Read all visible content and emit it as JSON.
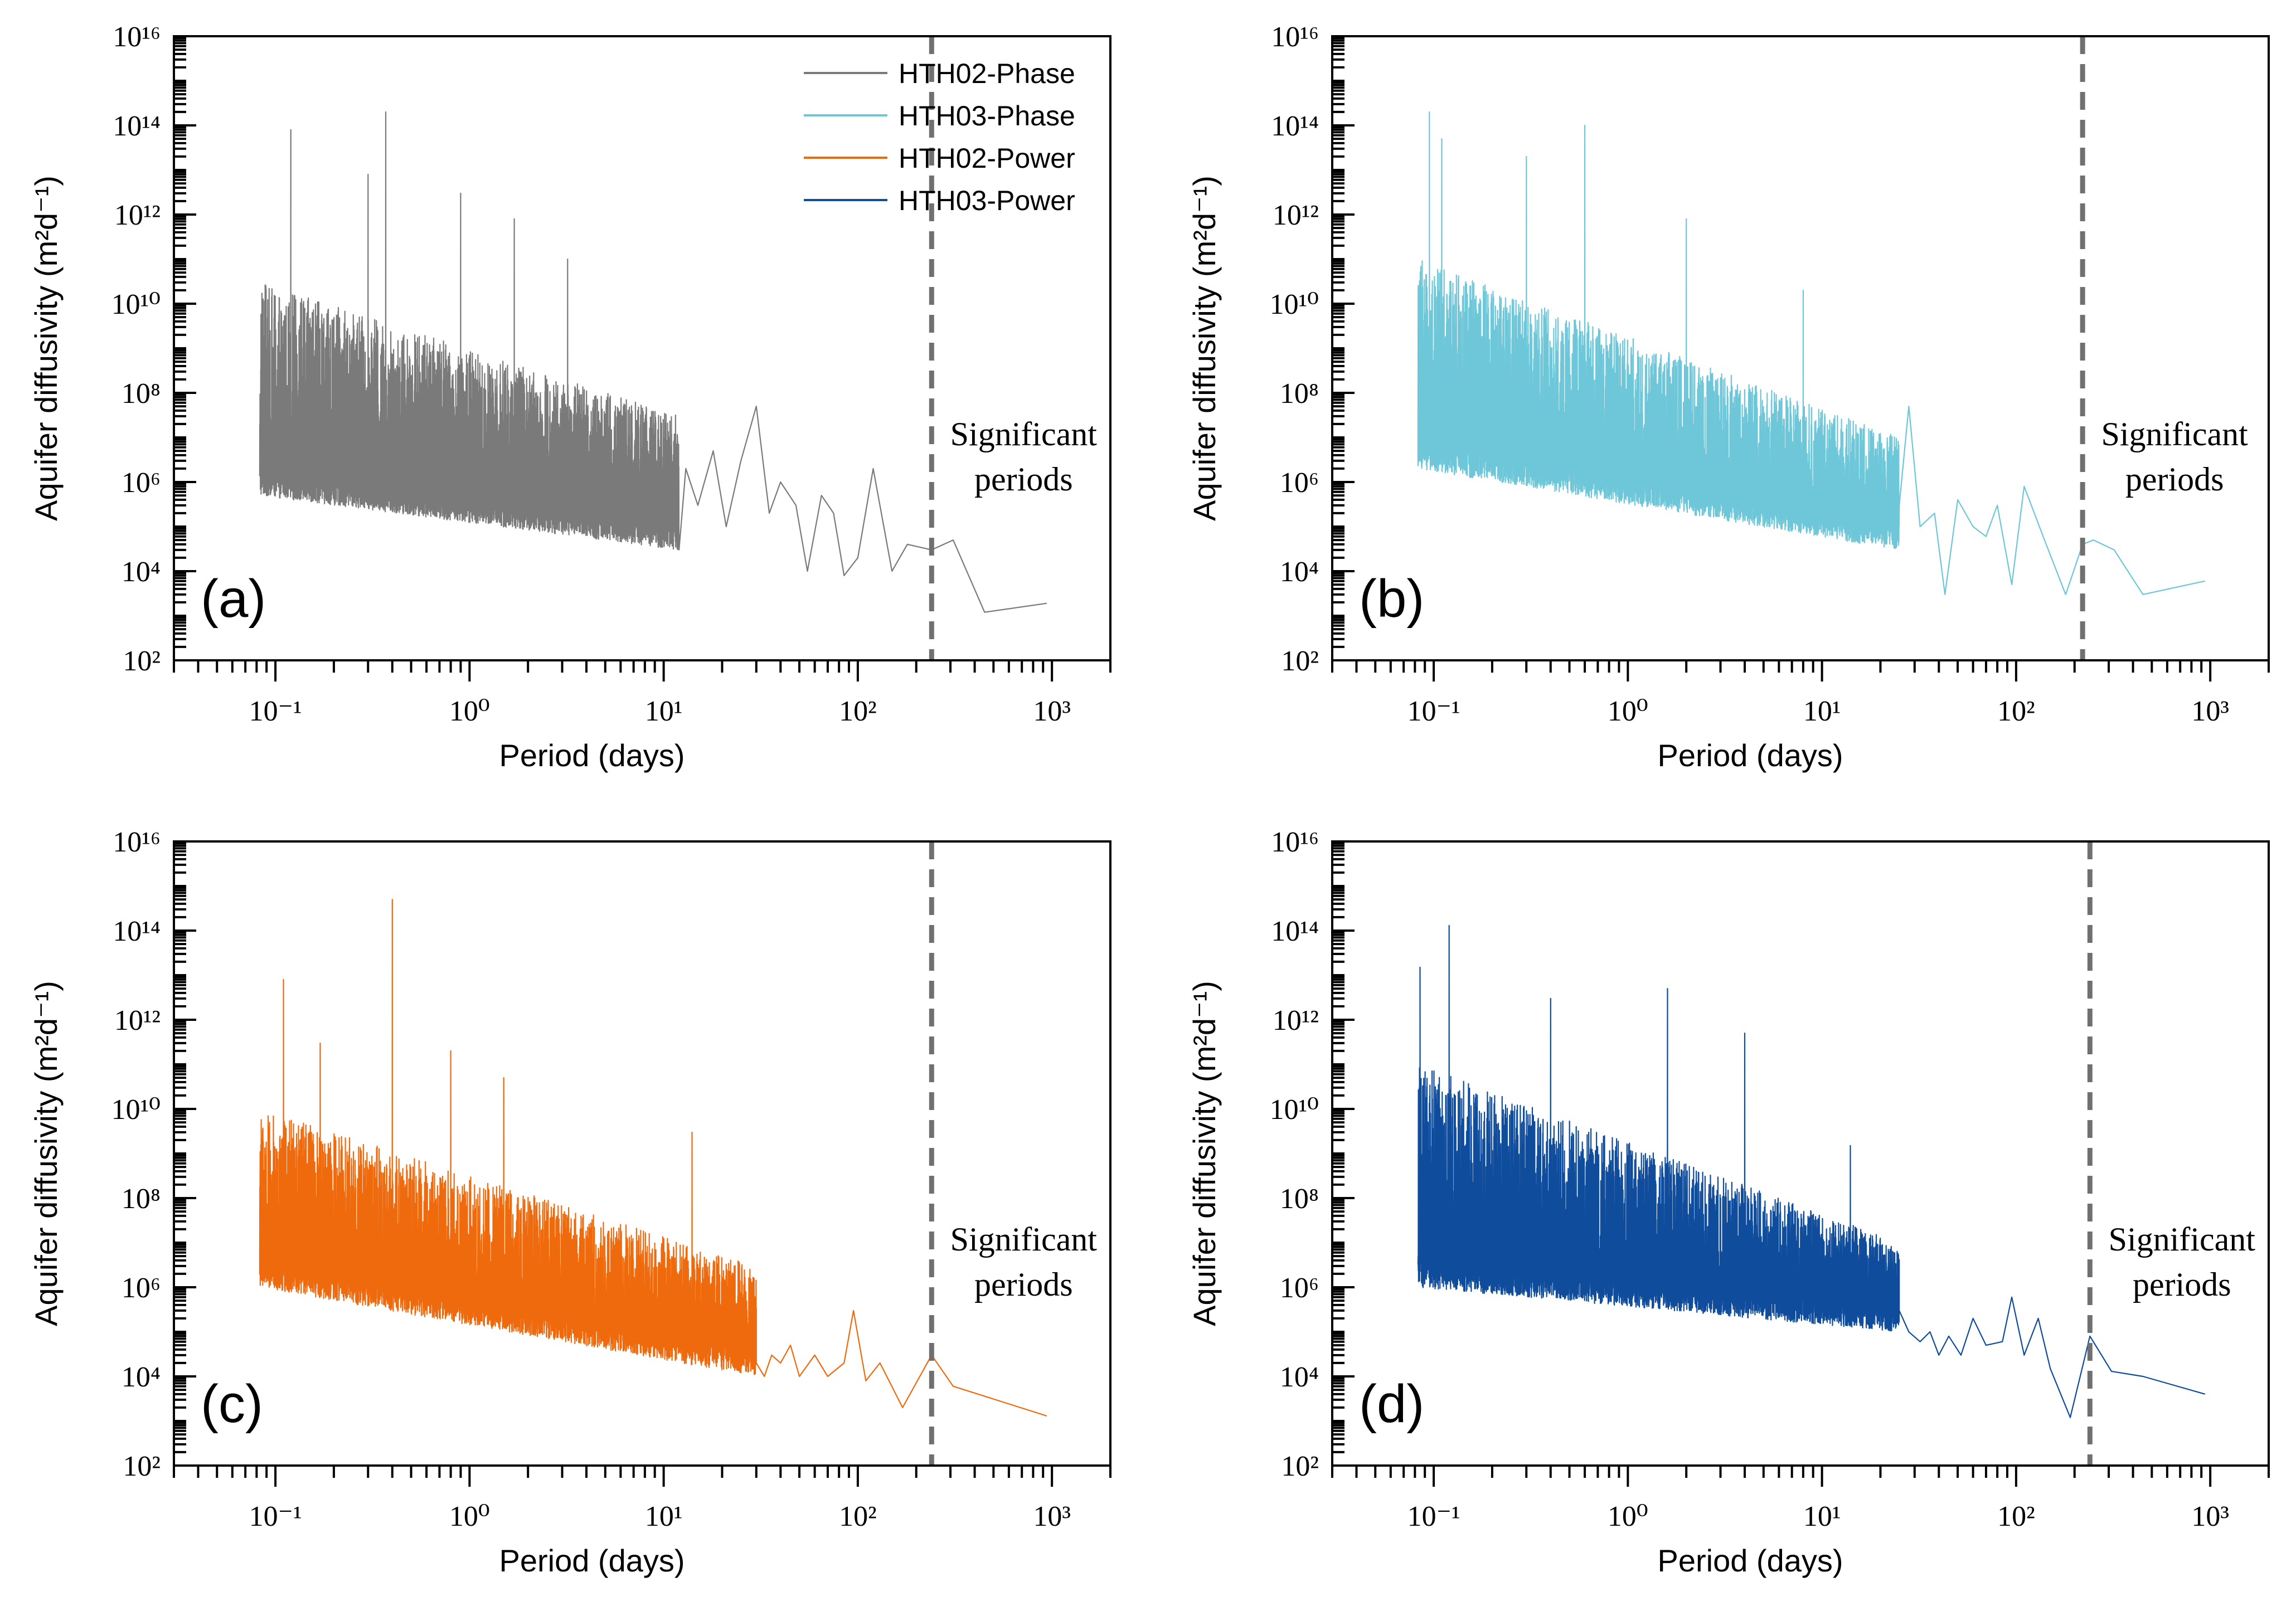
{
  "figure": {
    "panels": [
      {
        "label": "(a)",
        "color": "#7a7a7a",
        "series_name": "HTH02-Phase",
        "annotation_lines": [
          "Significant",
          "periods"
        ],
        "show_legend": true
      },
      {
        "label": "(b)",
        "color": "#6ec7d8",
        "series_name": "HTH03-Phase",
        "annotation_lines": [
          "Significant",
          "periods"
        ],
        "show_legend": false
      },
      {
        "label": "(c)",
        "color": "#ef6a0c",
        "series_name": "HTH02-Power",
        "annotation_lines": [
          "Significant",
          "periods"
        ],
        "show_legend": false
      },
      {
        "label": "(d)",
        "color": "#0f4c9c",
        "series_name": "HTH03-Power",
        "annotation_lines": [
          "Significant",
          "periods"
        ],
        "show_legend": false
      }
    ],
    "dashed_line_color": "#707070"
  },
  "chart_data": [
    {
      "type": "line",
      "title": "(a)",
      "xlabel": "Period (days)",
      "ylabel": "Aquifer diffusivity (m²d⁻¹)",
      "xscale": "log",
      "yscale": "log",
      "xlim": [
        0.03,
        2000
      ],
      "ylim": [
        100,
        1e+16
      ],
      "x_ticks": [
        "10⁻¹",
        "10⁰",
        "10¹",
        "10²",
        "10³"
      ],
      "y_ticks": [
        "10²",
        "10⁴",
        "10⁶",
        "10⁸",
        "10¹⁰",
        "10¹²",
        "10¹⁴",
        "10¹⁶"
      ],
      "legend": {
        "position": "top-right",
        "entries": [
          {
            "name": "HTH02-Phase",
            "color": "#7a7a7a"
          },
          {
            "name": "HTH03-Phase",
            "color": "#6ec7d8"
          },
          {
            "name": "HTH02-Power",
            "color": "#ef6a0c"
          },
          {
            "name": "HTH03-Power",
            "color": "#0f4c9c"
          }
        ]
      },
      "significant_period_day": 240,
      "annotation": "Significant periods",
      "series": [
        {
          "name": "HTH02-Phase",
          "color": "#7a7a7a",
          "envelope": {
            "x_start": 0.083,
            "x_end": 12,
            "floor_at_start": 500000.0,
            "floor_at_end": 30000.0,
            "peak_at_start": 30000000000.0,
            "peak_at_end": 30000000.0,
            "spikes": [
              [
                0.12,
                80000000000000.0
              ],
              [
                0.37,
                200000000000000.0
              ],
              [
                0.3,
                8000000000000.0
              ],
              [
                0.9,
                3000000000000.0
              ],
              [
                1.7,
                800000000000.0
              ],
              [
                3.2,
                100000000000.0
              ]
            ]
          },
          "tail": [
            [
              12,
              30000.0
            ],
            [
              13,
              2000000.0
            ],
            [
              15,
              300000.0
            ],
            [
              18,
              5000000.0
            ],
            [
              21,
              100000.0
            ],
            [
              25,
              3000000.0
            ],
            [
              30,
              50000000.0
            ],
            [
              35,
              200000.0
            ],
            [
              40,
              1000000.0
            ],
            [
              48,
              300000.0
            ],
            [
              55,
              10000.0
            ],
            [
              65,
              500000.0
            ],
            [
              75,
              200000.0
            ],
            [
              85,
              8000.0
            ],
            [
              100,
              20000.0
            ],
            [
              120,
              2000000.0
            ],
            [
              150,
              10000.0
            ],
            [
              180,
              40000.0
            ],
            [
              240,
              30000.0
            ],
            [
              310,
              50000.0
            ],
            [
              450,
              1200.0
            ],
            [
              940,
              1900.0
            ]
          ]
        }
      ]
    },
    {
      "type": "line",
      "title": "(b)",
      "xlabel": "Period (days)",
      "ylabel": "Aquifer diffusivity (m²d⁻¹)",
      "xscale": "log",
      "yscale": "log",
      "xlim": [
        0.03,
        2000
      ],
      "ylim": [
        100,
        1e+16
      ],
      "x_ticks": [
        "10⁻¹",
        "10⁰",
        "10¹",
        "10²",
        "10³"
      ],
      "y_ticks": [
        "10²",
        "10⁴",
        "10⁶",
        "10⁸",
        "10¹⁰",
        "10¹²",
        "10¹⁴",
        "10¹⁶"
      ],
      "significant_period_day": 220,
      "annotation": "Significant periods",
      "series": [
        {
          "name": "HTH03-Phase",
          "color": "#6ec7d8",
          "envelope": {
            "x_start": 0.083,
            "x_end": 25,
            "floor_at_start": 2000000.0,
            "floor_at_end": 30000.0,
            "peak_at_start": 100000000000.0,
            "peak_at_end": 10000000.0,
            "spikes": [
              [
                0.095,
                200000000000000.0
              ],
              [
                0.6,
                100000000000000.0
              ],
              [
                0.11,
                50000000000000.0
              ],
              [
                0.3,
                20000000000000.0
              ],
              [
                2,
                800000000000.0
              ],
              [
                8,
                20000000000.0
              ]
            ]
          },
          "tail": [
            [
              25,
              300000.0
            ],
            [
              28,
              50000000.0
            ],
            [
              32,
              100000.0
            ],
            [
              38,
              200000.0
            ],
            [
              43,
              3000.0
            ],
            [
              50,
              400000.0
            ],
            [
              60,
              100000.0
            ],
            [
              70,
              60000.0
            ],
            [
              80,
              300000.0
            ],
            [
              95,
              5000.0
            ],
            [
              110,
              800000.0
            ],
            [
              140,
              50000.0
            ],
            [
              180,
              3000.0
            ],
            [
              220,
              40000.0
            ],
            [
              250,
              50000.0
            ],
            [
              320,
              30000.0
            ],
            [
              450,
              3000.0
            ],
            [
              940,
              6000.0
            ]
          ]
        }
      ]
    },
    {
      "type": "line",
      "title": "(c)",
      "xlabel": "Period (days)",
      "ylabel": "Aquifer diffusivity (m²d⁻¹)",
      "xscale": "log",
      "yscale": "log",
      "xlim": [
        0.03,
        2000
      ],
      "ylim": [
        100,
        1e+16
      ],
      "x_ticks": [
        "10⁻¹",
        "10⁰",
        "10¹",
        "10²",
        "10³"
      ],
      "y_ticks": [
        "10²",
        "10⁴",
        "10⁶",
        "10⁸",
        "10¹⁰",
        "10¹²",
        "10¹⁴",
        "10¹⁶"
      ],
      "significant_period_day": 240,
      "annotation": "Significant periods",
      "series": [
        {
          "name": "HTH02-Power",
          "color": "#ef6a0c",
          "envelope": {
            "x_start": 0.083,
            "x_end": 30,
            "floor_at_start": 1000000.0,
            "floor_at_end": 10000.0,
            "peak_at_start": 10000000000.0,
            "peak_at_end": 3000000.0,
            "spikes": [
              [
                0.4,
                500000000000000.0
              ],
              [
                0.11,
                8000000000000.0
              ],
              [
                0.17,
                300000000000.0
              ],
              [
                0.8,
                200000000000.0
              ],
              [
                1.5,
                50000000000.0
              ],
              [
                14,
                3000000000.0
              ]
            ]
          },
          "tail": [
            [
              30,
              20000.0
            ],
            [
              33,
              10000.0
            ],
            [
              36,
              30000.0
            ],
            [
              40,
              20000.0
            ],
            [
              45,
              50000.0
            ],
            [
              50,
              10000.0
            ],
            [
              60,
              30000.0
            ],
            [
              70,
              10000.0
            ],
            [
              85,
              20000.0
            ],
            [
              95,
              300000.0
            ],
            [
              110,
              8000.0
            ],
            [
              130,
              20000.0
            ],
            [
              170,
              2000.0
            ],
            [
              240,
              30000.0
            ],
            [
              310,
              6000.0
            ],
            [
              940,
              1300.0
            ]
          ]
        }
      ]
    },
    {
      "type": "line",
      "title": "(d)",
      "xlabel": "Period (days)",
      "ylabel": "Aquifer diffusivity (m²d⁻¹)",
      "xscale": "log",
      "yscale": "log",
      "xlim": [
        0.03,
        2000
      ],
      "ylim": [
        100,
        1e+16
      ],
      "x_ticks": [
        "10⁻¹",
        "10⁰",
        "10¹",
        "10²",
        "10³"
      ],
      "y_ticks": [
        "10²",
        "10⁴",
        "10⁶",
        "10⁸",
        "10¹⁰",
        "10¹²",
        "10¹⁴",
        "10¹⁶"
      ],
      "significant_period_day": 240,
      "annotation": "Significant periods",
      "series": [
        {
          "name": "HTH03-Power",
          "color": "#0f4c9c",
          "envelope": {
            "x_start": 0.083,
            "x_end": 25,
            "floor_at_start": 1000000.0,
            "floor_at_end": 100000.0,
            "peak_at_start": 100000000000.0,
            "peak_at_end": 10000000.0,
            "spikes": [
              [
                0.12,
                130000000000000.0
              ],
              [
                1.6,
                5000000000000.0
              ],
              [
                0.085,
                15000000000000.0
              ],
              [
                0.4,
                3000000000000.0
              ],
              [
                4,
                500000000000.0
              ],
              [
                14,
                1500000000.0
              ]
            ]
          },
          "tail": [
            [
              25,
              300000.0
            ],
            [
              28,
              100000.0
            ],
            [
              32,
              60000.0
            ],
            [
              36,
              100000.0
            ],
            [
              40,
              30000.0
            ],
            [
              45,
              80000.0
            ],
            [
              52,
              30000.0
            ],
            [
              60,
              200000.0
            ],
            [
              70,
              50000.0
            ],
            [
              85,
              60000.0
            ],
            [
              95,
              600000.0
            ],
            [
              110,
              30000.0
            ],
            [
              130,
              200000.0
            ],
            [
              150,
              15000.0
            ],
            [
              190,
              1200.0
            ],
            [
              240,
              80000.0
            ],
            [
              310,
              13000.0
            ],
            [
              450,
              10000.0
            ],
            [
              940,
              4000.0
            ]
          ]
        }
      ]
    }
  ]
}
